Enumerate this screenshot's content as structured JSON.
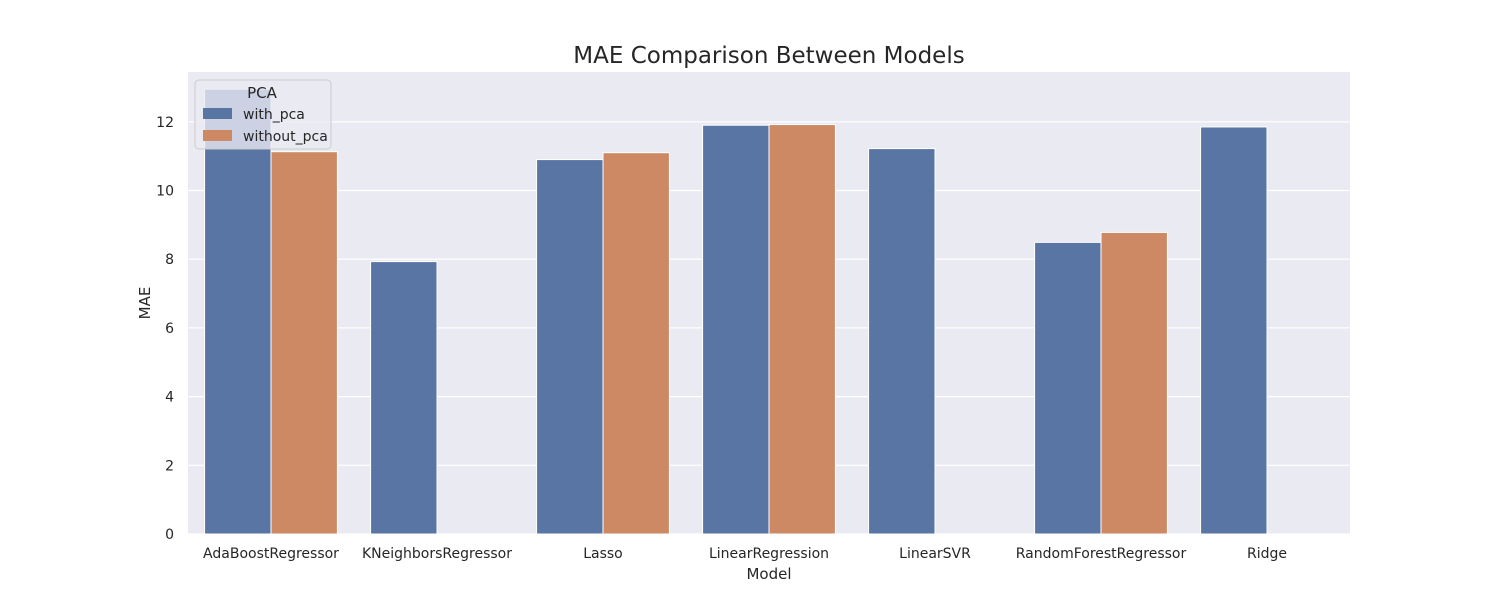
{
  "chart_data": {
    "type": "bar",
    "title": "MAE Comparison Between Models",
    "xlabel": "Model",
    "ylabel": "MAE",
    "categories": [
      "AdaBoostRegressor",
      "KNeighborsRegressor",
      "Lasso",
      "LinearRegression",
      "LinearSVR",
      "RandomForestRegressor",
      "Ridge"
    ],
    "series": [
      {
        "name": "with_pca",
        "color": "#5875a4",
        "values": [
          12.95,
          7.93,
          10.9,
          11.9,
          11.22,
          8.49,
          11.85
        ]
      },
      {
        "name": "without_pca",
        "color": "#cc8963",
        "values": [
          11.13,
          null,
          11.1,
          11.92,
          null,
          8.78,
          null
        ]
      }
    ],
    "ylim": [
      0,
      13.45
    ],
    "yticks": [
      0,
      2,
      4,
      6,
      8,
      10,
      12
    ],
    "grid": true,
    "legend": {
      "title": "PCA",
      "placement": "top-left"
    },
    "background": "#eaeaf2",
    "gridcolor": "#ffffff"
  }
}
